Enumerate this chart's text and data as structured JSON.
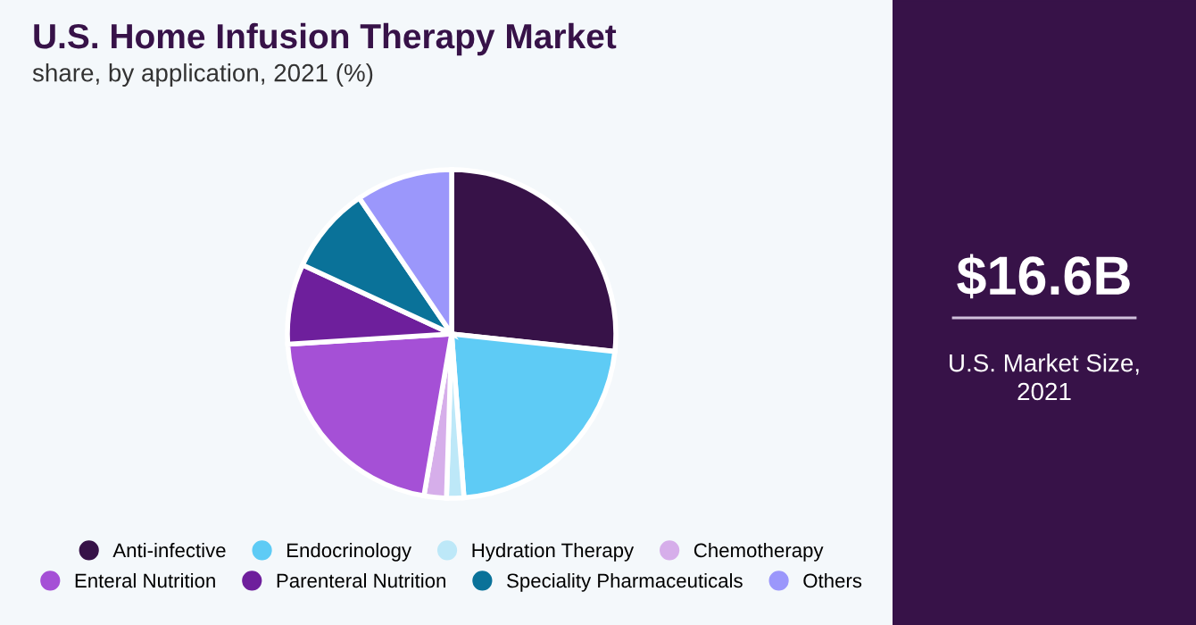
{
  "chart_data": {
    "type": "pie",
    "title": "U.S. Home Infusion Therapy Market",
    "subtitle": "share, by application, 2021 (%)",
    "categories": [
      "Anti-infective",
      "Endocrinology",
      "Hydration Therapy",
      "Chemotherapy",
      "Enteral Nutrition",
      "Parenteral Nutrition",
      "Speciality Pharmaceuticals",
      "Others"
    ],
    "values": [
      26.7,
      22.1,
      1.7,
      2.2,
      21.3,
      7.9,
      8.6,
      9.5
    ],
    "colors": [
      "#371248",
      "#5ecbf5",
      "#bde8f8",
      "#d6aeea",
      "#a550d6",
      "#6e1f9c",
      "#0a7299",
      "#9b97fb"
    ],
    "legend": "bottom",
    "annotations": [
      "$16.6B",
      "U.S. Market Size,\n2021"
    ]
  }
}
